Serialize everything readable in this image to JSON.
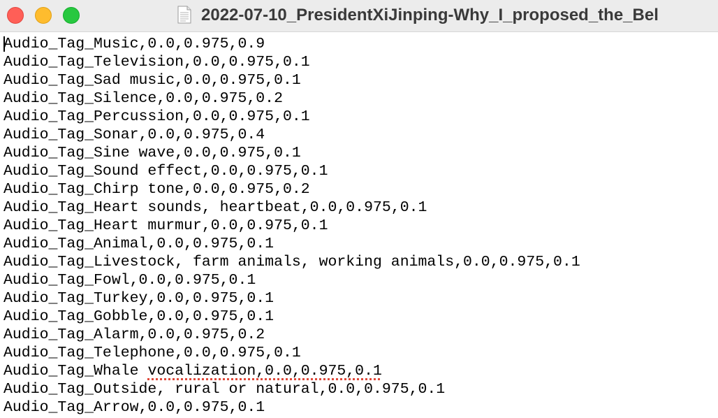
{
  "window": {
    "title": "2022-07-10_PresidentXiJinping-Why_I_proposed_the_Bel"
  },
  "editor": {
    "lines": [
      "Audio_Tag_Music,0.0,0.975,0.9",
      "Audio_Tag_Television,0.0,0.975,0.1",
      "Audio_Tag_Sad music,0.0,0.975,0.1",
      "Audio_Tag_Silence,0.0,0.975,0.2",
      "Audio_Tag_Percussion,0.0,0.975,0.1",
      "Audio_Tag_Sonar,0.0,0.975,0.4",
      "Audio_Tag_Sine wave,0.0,0.975,0.1",
      "Audio_Tag_Sound effect,0.0,0.975,0.1",
      "Audio_Tag_Chirp tone,0.0,0.975,0.2",
      "Audio_Tag_Heart sounds, heartbeat,0.0,0.975,0.1",
      "Audio_Tag_Heart murmur,0.0,0.975,0.1",
      "Audio_Tag_Animal,0.0,0.975,0.1",
      "Audio_Tag_Livestock, farm animals, working animals,0.0,0.975,0.1",
      "Audio_Tag_Fowl,0.0,0.975,0.1",
      "Audio_Tag_Turkey,0.0,0.975,0.1",
      "Audio_Tag_Gobble,0.0,0.975,0.1",
      "Audio_Tag_Alarm,0.0,0.975,0.2",
      "Audio_Tag_Telephone,0.0,0.975,0.1",
      "Audio_Tag_Whale vocalization,0.0,0.975,0.1",
      "Audio_Tag_Outside, rural or natural,0.0,0.975,0.1",
      "Audio_Tag_Arrow,0.0,0.975,0.1"
    ],
    "line_18_prefix": "Audio_Tag_Whale ",
    "line_18_misspelled": "vocalization,0.0,0.975,0.1"
  },
  "colors": {
    "close": "#ff5f57",
    "minimize": "#febc2e",
    "zoom": "#28c840",
    "spellcheck_underline": "#e0493a"
  },
  "icons": {
    "document": "text-document-icon"
  }
}
